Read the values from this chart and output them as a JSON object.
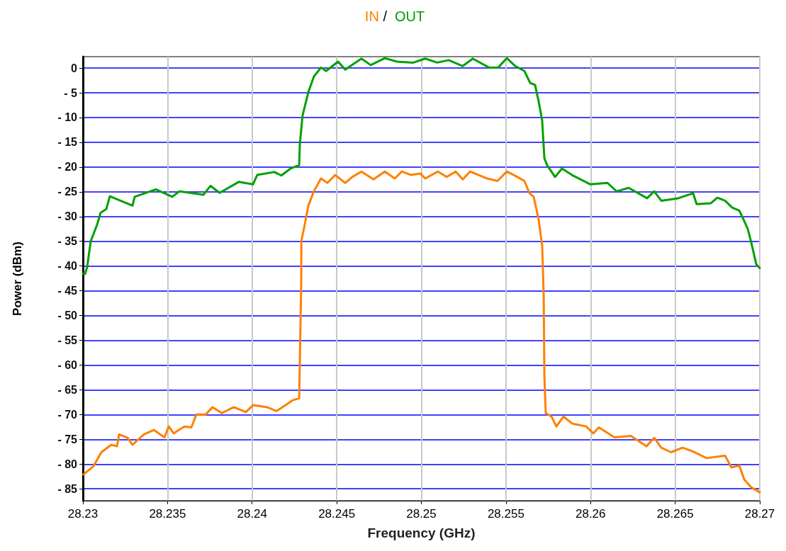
{
  "chart_data": {
    "type": "line",
    "xlabel": "Frequency (GHz)",
    "ylabel": "Power (dBm)",
    "xlim": [
      28.23,
      28.27
    ],
    "xticks": [
      28.23,
      28.235,
      28.24,
      28.245,
      28.25,
      28.255,
      28.26,
      28.265,
      28.27
    ],
    "ylim": [
      -87.4,
      2.3
    ],
    "yticks": [
      {
        "value": 0,
        "label": "0"
      },
      {
        "value": -5,
        "label": "- 5"
      },
      {
        "value": -10,
        "label": "- 10"
      },
      {
        "value": -15,
        "label": "- 15"
      },
      {
        "value": -20,
        "label": "- 20"
      },
      {
        "value": -25,
        "label": "- 25"
      },
      {
        "value": -30,
        "label": "- 30"
      },
      {
        "value": -35,
        "label": "- 35"
      },
      {
        "value": -40,
        "label": "- 40"
      },
      {
        "value": -45,
        "label": "- 45"
      },
      {
        "value": -50,
        "label": "- 50"
      },
      {
        "value": -55,
        "label": "- 55"
      },
      {
        "value": -60,
        "label": "- 60"
      },
      {
        "value": -65,
        "label": "- 65"
      },
      {
        "value": -70,
        "label": "- 70"
      },
      {
        "value": -75,
        "label": "- 75"
      },
      {
        "value": -80,
        "label": "- 80"
      },
      {
        "value": -85,
        "label": "- 85"
      }
    ],
    "grid": true,
    "legend": "top",
    "annotations": [
      "/"
    ],
    "marker": "none",
    "line_style": "solid",
    "series": [
      {
        "name": "IN",
        "color": "#ff8000",
        "x": [
          28.23004,
          28.23063,
          28.23109,
          28.23168,
          28.23201,
          28.23214,
          28.23264,
          28.23293,
          28.2336,
          28.23419,
          28.23482,
          28.23507,
          28.23536,
          28.23599,
          28.23641,
          28.2367,
          28.23725,
          28.23766,
          28.23821,
          28.23892,
          28.23963,
          28.24005,
          28.24089,
          28.24143,
          28.24198,
          28.2424,
          28.24278,
          28.24282,
          28.2429,
          28.24291,
          28.24311,
          28.24332,
          28.24365,
          28.24407,
          28.24445,
          28.24491,
          28.2455,
          28.24592,
          28.24646,
          28.24717,
          28.24784,
          28.24843,
          28.24885,
          28.24939,
          28.24994,
          28.25023,
          28.25098,
          28.25149,
          28.25203,
          28.25245,
          28.25287,
          28.25387,
          28.2545,
          28.25505,
          28.25568,
          28.25609,
          28.25639,
          28.25664,
          28.25693,
          28.25714,
          28.25723,
          28.25727,
          28.25735,
          28.25769,
          28.25798,
          28.2584,
          28.2589,
          28.25974,
          28.26016,
          28.26049,
          28.26141,
          28.26238,
          28.2633,
          28.26376,
          28.26418,
          28.26476,
          28.26543,
          28.26602,
          28.26686,
          28.26795,
          28.26832,
          28.26879,
          28.26908,
          28.2695,
          28.27
        ],
        "values": [
          -82.1,
          -80.4,
          -77.6,
          -76.1,
          -76.4,
          -74,
          -74.7,
          -76.1,
          -74,
          -73.1,
          -74.6,
          -72.4,
          -73.8,
          -72.4,
          -72.6,
          -70,
          -70,
          -68.5,
          -69.7,
          -68.5,
          -69.5,
          -68.1,
          -68.5,
          -69.3,
          -68.1,
          -67.1,
          -66.7,
          -59.2,
          -43.5,
          -34.9,
          -31.6,
          -27.8,
          -24.9,
          -22.3,
          -23.2,
          -21.6,
          -23.2,
          -22,
          -20.9,
          -22.5,
          -20.9,
          -22.3,
          -20.9,
          -21.6,
          -21.3,
          -22.3,
          -20.9,
          -22,
          -20.9,
          -22.5,
          -20.9,
          -22.3,
          -22.8,
          -20.9,
          -22,
          -22.8,
          -25.3,
          -26,
          -30.6,
          -35.9,
          -45.9,
          -62.1,
          -69.7,
          -70.4,
          -72.4,
          -70.4,
          -71.8,
          -72.4,
          -73.8,
          -72.6,
          -74.6,
          -74.3,
          -76.4,
          -74.7,
          -76.7,
          -77.6,
          -76.7,
          -77.4,
          -78.8,
          -78.3,
          -80.7,
          -80.3,
          -83.1,
          -84.7,
          -85.7
        ]
      },
      {
        "name": "OUT",
        "color": "#00a000",
        "x": [
          28.23,
          28.23013,
          28.23025,
          28.23046,
          28.23084,
          28.23105,
          28.23138,
          28.23159,
          28.23293,
          28.23306,
          28.23431,
          28.23528,
          28.2357,
          28.23712,
          28.23754,
          28.23808,
          28.23921,
          28.24005,
          28.2403,
          28.24131,
          28.24173,
          28.24227,
          28.24278,
          28.24282,
          28.24298,
          28.24332,
          28.24365,
          28.24407,
          28.24437,
          28.24508,
          28.2455,
          28.24646,
          28.24701,
          28.24784,
          28.24856,
          28.24952,
          28.25023,
          28.25094,
          28.25161,
          28.25245,
          28.25304,
          28.254,
          28.25454,
          28.25505,
          28.25555,
          28.25609,
          28.25643,
          28.25672,
          28.25693,
          28.25714,
          28.25727,
          28.25743,
          28.2579,
          28.25831,
          28.2589,
          28.25999,
          28.261,
          28.26154,
          28.26225,
          28.26334,
          28.26376,
          28.26418,
          28.26518,
          28.26606,
          28.26627,
          28.26711,
          28.26749,
          28.26795,
          28.26837,
          28.26879,
          28.269,
          28.26929,
          28.2695,
          28.26979,
          28.27
        ],
        "values": [
          -41.5,
          -41.6,
          -40.2,
          -35,
          -31.6,
          -29.2,
          -28.5,
          -25.9,
          -27.8,
          -26,
          -24.5,
          -26,
          -24.9,
          -25.6,
          -23.8,
          -25.2,
          -23,
          -23.5,
          -21.6,
          -21,
          -21.7,
          -20.3,
          -19.6,
          -15.3,
          -9.6,
          -4.9,
          -1.7,
          0.1,
          -0.6,
          1.3,
          -0.3,
          1.9,
          0.6,
          2,
          1.3,
          1.1,
          1.9,
          1.1,
          1.6,
          0.4,
          1.9,
          0.1,
          0.1,
          2,
          0.4,
          -0.6,
          -3,
          -3.4,
          -6.7,
          -10.6,
          -18.2,
          -19.6,
          -22,
          -20.3,
          -21.6,
          -23.5,
          -23.2,
          -24.9,
          -24.2,
          -26.3,
          -24.9,
          -26.8,
          -26.3,
          -25.3,
          -27.5,
          -27.3,
          -26.2,
          -26.8,
          -28.2,
          -28.8,
          -30.3,
          -32.5,
          -35.3,
          -39.6,
          -40.4
        ]
      }
    ]
  }
}
